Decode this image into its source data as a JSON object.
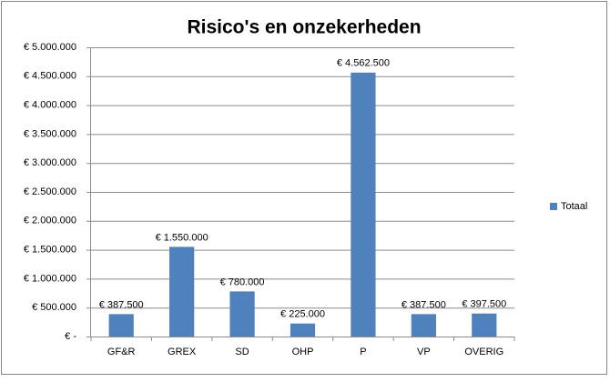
{
  "chart_data": {
    "type": "bar",
    "title": "Risico's en onzekerheden",
    "categories": [
      "GF&R",
      "GREX",
      "SD",
      "OHP",
      "P",
      "VP",
      "OVERIG"
    ],
    "series": [
      {
        "name": "Totaal",
        "color": "#4f81bd",
        "values": [
          387500,
          1550000,
          780000,
          225000,
          4562500,
          387500,
          397500
        ],
        "value_labels": [
          "€ 387.500",
          "€ 1.550.000",
          "€ 780.000",
          "€ 225.000",
          "€ 4.562.500",
          "€ 387.500",
          "€ 397.500"
        ]
      }
    ],
    "ylim": [
      0,
      5000000
    ],
    "yticks": [
      {
        "value": 0,
        "label": "€ -"
      },
      {
        "value": 500000,
        "label": "€ 500.000"
      },
      {
        "value": 1000000,
        "label": "€ 1.000.000"
      },
      {
        "value": 1500000,
        "label": "€ 1.500.000"
      },
      {
        "value": 2000000,
        "label": "€ 2.000.000"
      },
      {
        "value": 2500000,
        "label": "€ 2.500.000"
      },
      {
        "value": 3000000,
        "label": "€ 3.000.000"
      },
      {
        "value": 3500000,
        "label": "€ 3.500.000"
      },
      {
        "value": 4000000,
        "label": "€ 4.000.000"
      },
      {
        "value": 4500000,
        "label": "€ 4.500.000"
      },
      {
        "value": 5000000,
        "label": "€ 5.000.000"
      }
    ],
    "grid": true,
    "legend": "right"
  }
}
